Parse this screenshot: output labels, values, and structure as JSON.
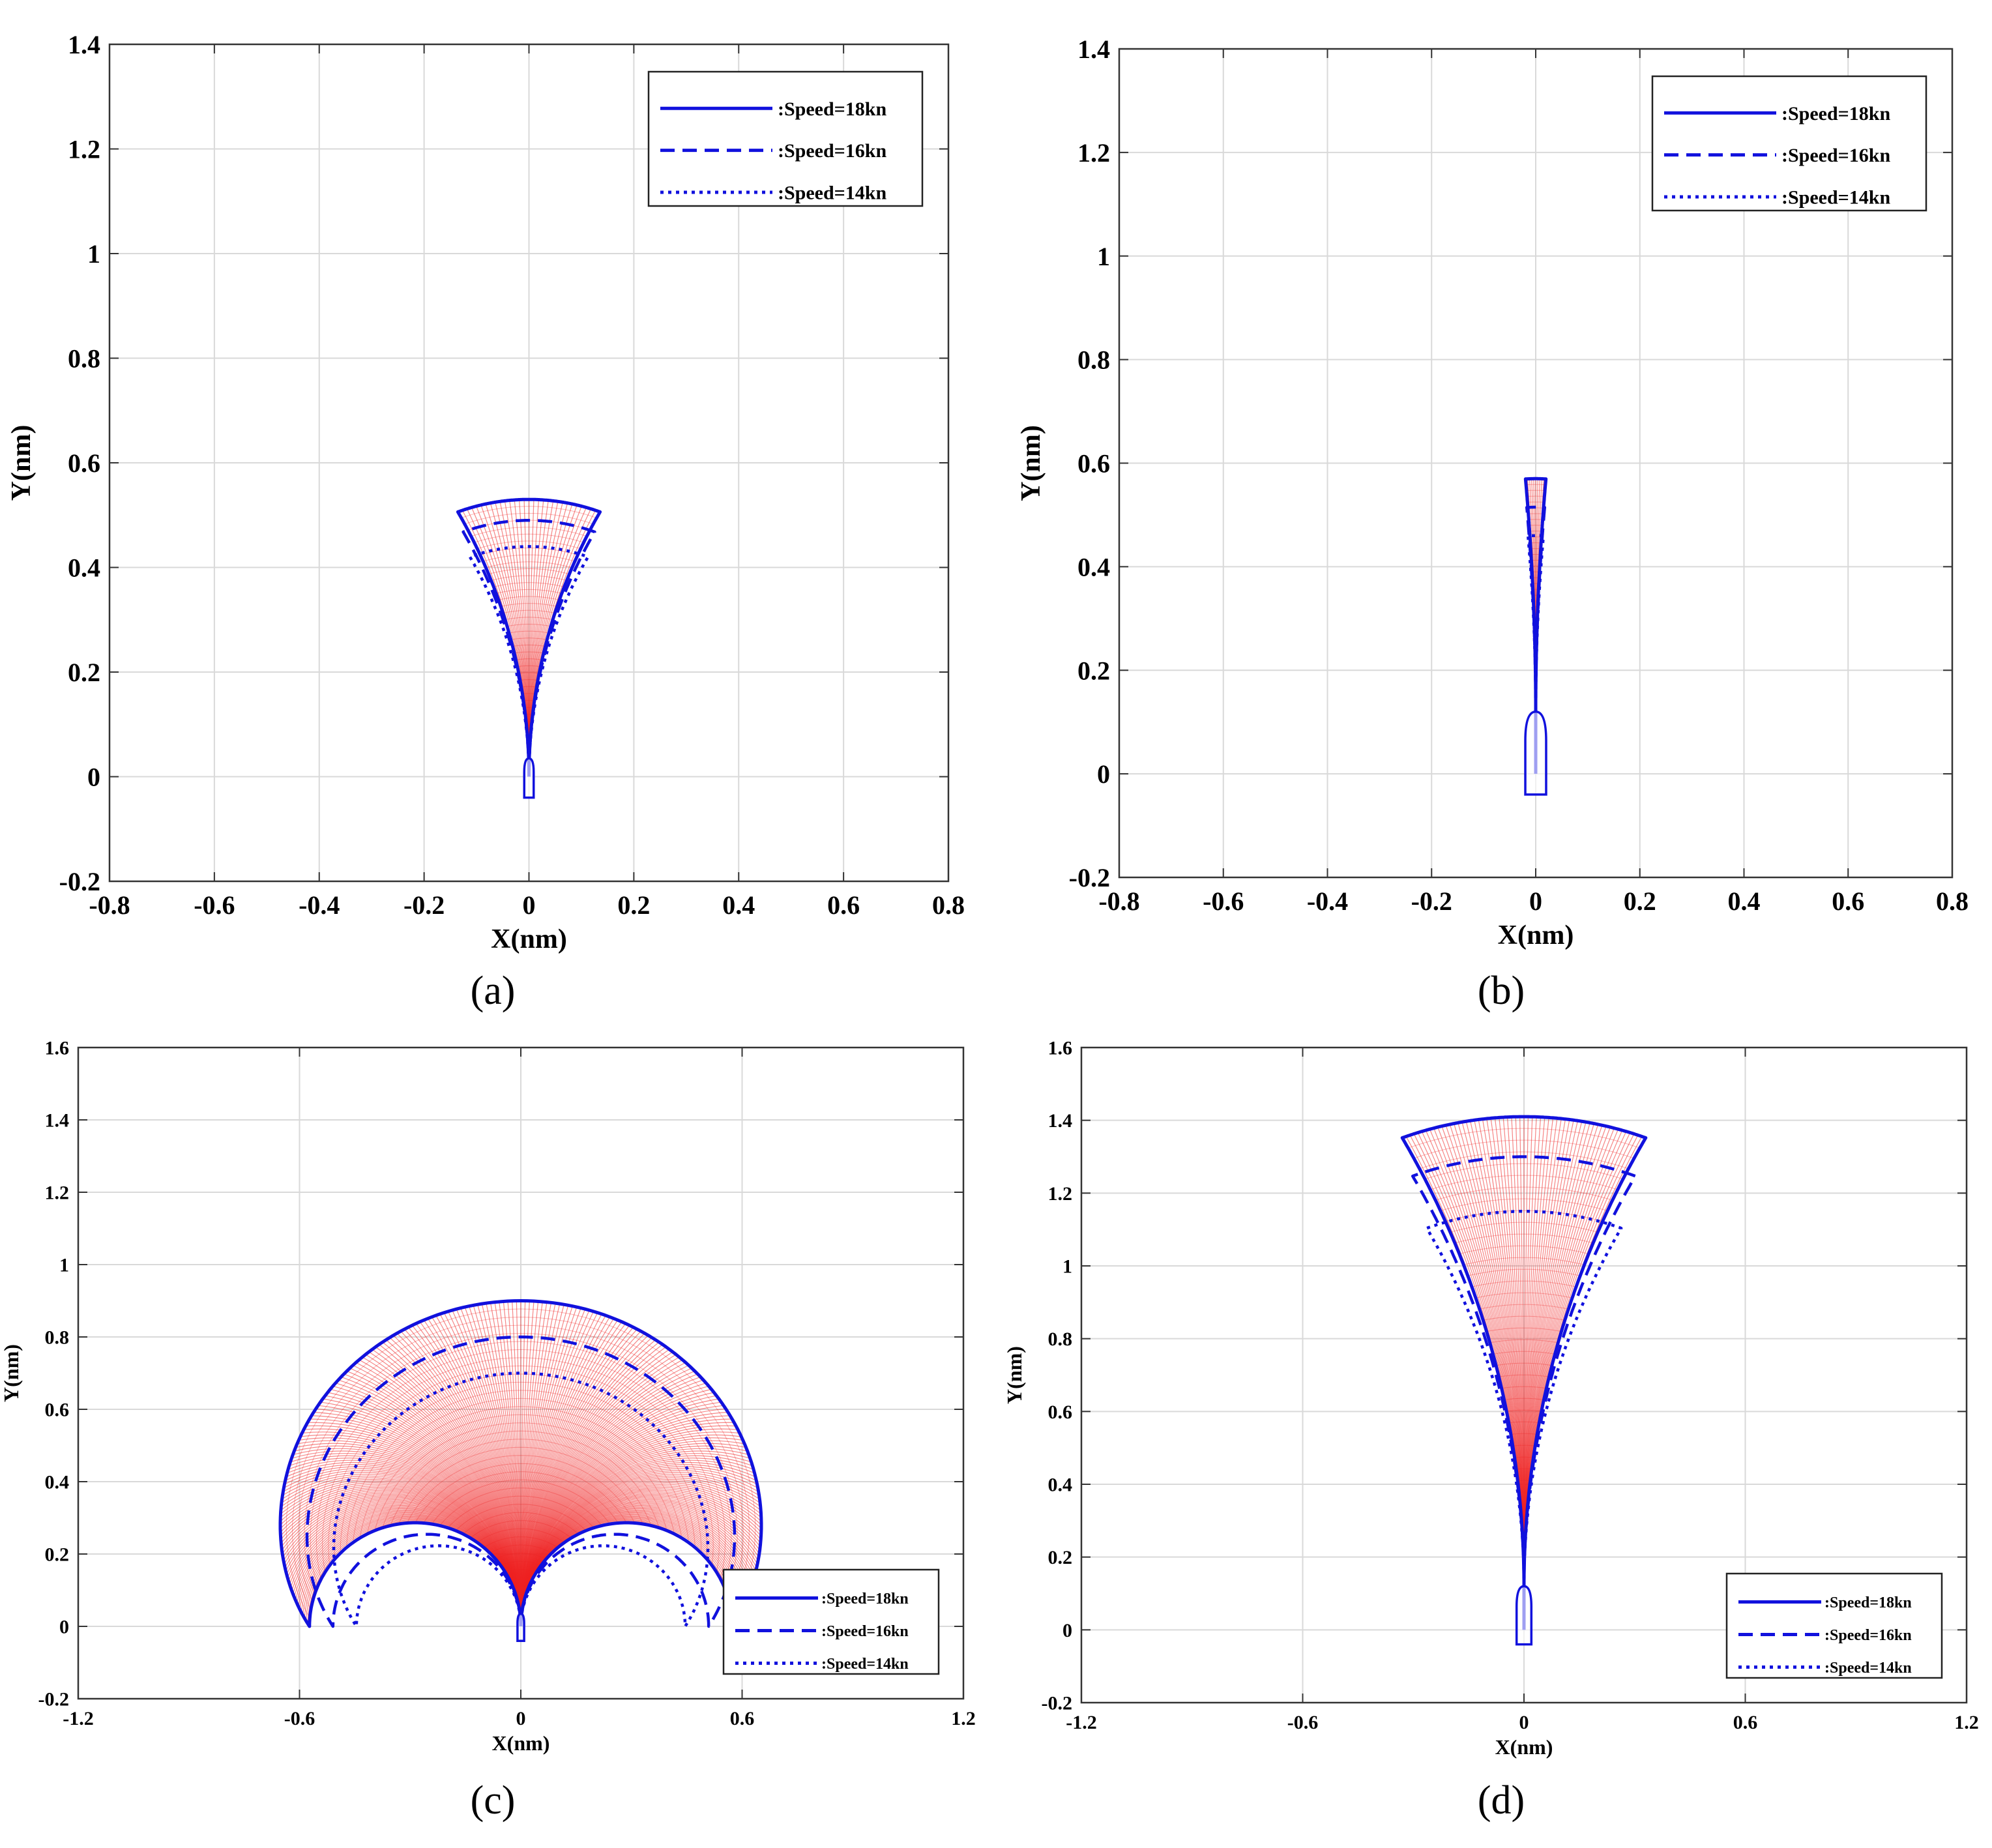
{
  "colors": {
    "curve": "#1111dd",
    "fan": "#ee2222",
    "grid": "#d9d9d9",
    "axis": "#333333"
  },
  "chart_data": [
    {
      "panel": "(a)",
      "type": "line",
      "xlabel": "X(nm)",
      "ylabel": "Y(nm)",
      "xlim": [
        -0.8,
        0.8
      ],
      "ylim": [
        -0.2,
        1.4
      ],
      "xticks": [
        -0.8,
        -0.6,
        -0.4,
        -0.2,
        0,
        0.2,
        0.4,
        0.6,
        0.8
      ],
      "xtick_labels": [
        "-0.8",
        "-0.6",
        "-0.4",
        "-0.2",
        "0",
        "0.2",
        "0.4",
        "0.6",
        "0.8"
      ],
      "yticks": [
        -0.2,
        0,
        0.2,
        0.4,
        0.6,
        0.8,
        1,
        1.2,
        1.4
      ],
      "ytick_labels": [
        "-0.2",
        "0",
        "0.2",
        "0.4",
        "0.6",
        "0.8",
        "1",
        "1.2",
        "1.4"
      ],
      "legend": [
        "Speed=18kn",
        "Speed=16kn",
        "Speed=14kn"
      ],
      "legend_prefix": ":",
      "legend_position": "top-right",
      "fan": {
        "theta_max_deg": 30,
        "dtheta_deg": 2
      },
      "series": [
        {
          "name": "Speed=18kn",
          "style": "solid",
          "R": 0.53,
          "y0": 0
        },
        {
          "name": "Speed=16kn",
          "style": "dashed",
          "R": 0.49,
          "y0": 0
        },
        {
          "name": "Speed=14kn",
          "style": "dotted",
          "R": 0.44,
          "y0": 0
        }
      ],
      "ship": {
        "length": 0.075,
        "width": 0.018,
        "y_start": -0.04
      }
    },
    {
      "panel": "(b)",
      "type": "line",
      "xlabel": "X(nm)",
      "ylabel": "Y(nm)",
      "xlim": [
        -0.8,
        0.8
      ],
      "ylim": [
        -0.2,
        1.4
      ],
      "xticks": [
        -0.8,
        -0.6,
        -0.4,
        -0.2,
        0,
        0.2,
        0.4,
        0.6,
        0.8
      ],
      "xtick_labels": [
        "-0.8",
        "-0.6",
        "-0.4",
        "-0.2",
        "0",
        "0.2",
        "0.4",
        "0.6",
        "0.8"
      ],
      "yticks": [
        -0.2,
        0,
        0.2,
        0.4,
        0.6,
        0.8,
        1,
        1.2,
        1.4
      ],
      "ytick_labels": [
        "-0.2",
        "0",
        "0.2",
        "0.4",
        "0.6",
        "0.8",
        "1",
        "1.2",
        "1.4"
      ],
      "legend": [
        "Speed=18kn",
        "Speed=16kn",
        "Speed=14kn"
      ],
      "legend_prefix": ":",
      "legend_position": "top-right",
      "fan": {
        "theta_max_deg": 5,
        "dtheta_deg": 1
      },
      "series": [
        {
          "name": "Speed=18kn",
          "style": "solid",
          "R": 0.45,
          "y0": 0.12
        },
        {
          "name": "Speed=16kn",
          "style": "dashed",
          "R": 0.395,
          "y0": 0.12
        },
        {
          "name": "Speed=14kn",
          "style": "dotted",
          "R": 0.34,
          "y0": 0.12
        }
      ],
      "ship": {
        "length": 0.16,
        "width": 0.04,
        "y_start": -0.04
      }
    },
    {
      "panel": "(c)",
      "type": "line",
      "xlabel": "X(nm)",
      "ylabel": "Y(nm)",
      "xlim": [
        -1.2,
        1.2
      ],
      "ylim": [
        -0.2,
        1.6
      ],
      "xticks": [
        -1.2,
        -0.6,
        0,
        0.6,
        1.2
      ],
      "xtick_labels": [
        "-1.2",
        "-0.6",
        "0",
        "0.6",
        "1.2"
      ],
      "yticks": [
        -0.2,
        0,
        0.2,
        0.4,
        0.6,
        0.8,
        1,
        1.2,
        1.4,
        1.6
      ],
      "ytick_labels": [
        "-0.2",
        "0",
        "0.2",
        "0.4",
        "0.6",
        "0.8",
        "1",
        "1.2",
        "1.4",
        "1.6"
      ],
      "legend": [
        "Speed=18kn",
        "Speed=16kn",
        "Speed=14kn"
      ],
      "legend_prefix": ":",
      "legend_position": "bottom-right",
      "fan": {
        "theta_max_deg": 180,
        "dtheta_deg": 1.5
      },
      "series": [
        {
          "name": "Speed=18kn",
          "style": "solid",
          "R": 0.9,
          "y0": 0
        },
        {
          "name": "Speed=16kn",
          "style": "dashed",
          "R": 0.8,
          "y0": 0
        },
        {
          "name": "Speed=14kn",
          "style": "dotted",
          "R": 0.7,
          "y0": 0
        }
      ],
      "ship": {
        "length": 0.075,
        "width": 0.018,
        "y_start": -0.04
      }
    },
    {
      "panel": "(d)",
      "type": "line",
      "xlabel": "X(nm)",
      "ylabel": "Y(nm)",
      "xlim": [
        -1.2,
        1.2
      ],
      "ylim": [
        -0.2,
        1.6
      ],
      "xticks": [
        -1.2,
        -0.6,
        0,
        0.6,
        1.2
      ],
      "xtick_labels": [
        "-1.2",
        "-0.6",
        "0",
        "0.6",
        "1.2"
      ],
      "yticks": [
        -0.2,
        0,
        0.2,
        0.4,
        0.6,
        0.8,
        1,
        1.2,
        1.4,
        1.6
      ],
      "ytick_labels": [
        "-0.2",
        "0",
        "0.2",
        "0.4",
        "0.6",
        "0.8",
        "1",
        "1.2",
        "1.4",
        "1.6"
      ],
      "legend": [
        "Speed=18kn",
        "Speed=16kn",
        "Speed=14kn"
      ],
      "legend_prefix": ":",
      "legend_position": "bottom-right",
      "fan": {
        "theta_max_deg": 30,
        "dtheta_deg": 1
      },
      "series": [
        {
          "name": "Speed=18kn",
          "style": "solid",
          "R": 1.29,
          "y0": 0.12
        },
        {
          "name": "Speed=16kn",
          "style": "dashed",
          "R": 1.18,
          "y0": 0.12
        },
        {
          "name": "Speed=14kn",
          "style": "dotted",
          "R": 1.03,
          "y0": 0.12
        }
      ],
      "ship": {
        "length": 0.16,
        "width": 0.04,
        "y_start": -0.04
      }
    }
  ]
}
